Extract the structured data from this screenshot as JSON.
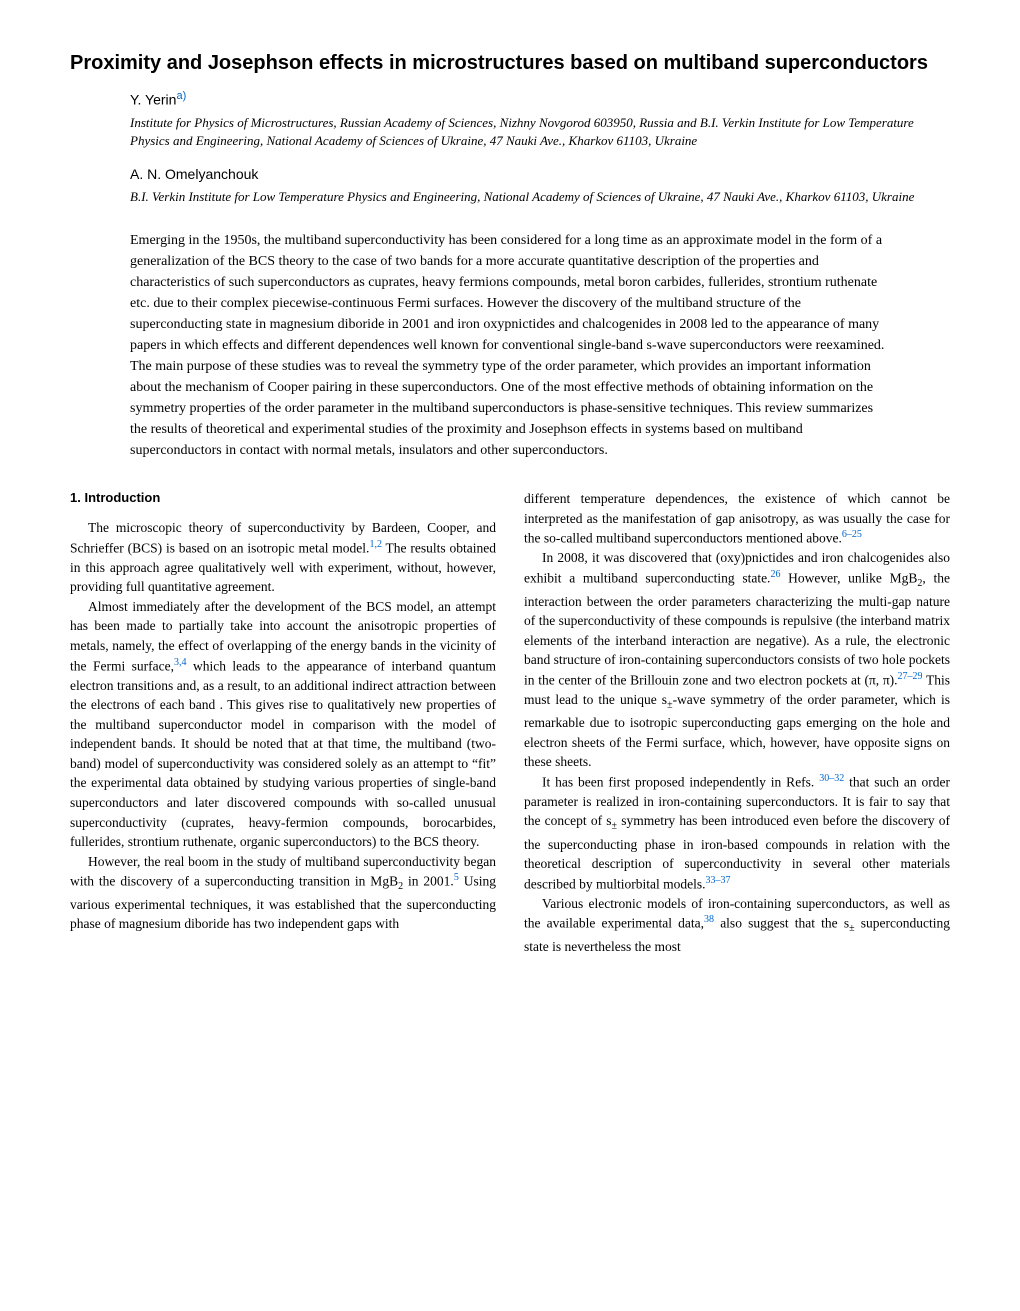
{
  "title": "Proximity and Josephson effects in microstructures based on multiband superconductors",
  "authors": [
    {
      "name": "Y. Yerin",
      "sup": "a)",
      "affiliation": "Institute for Physics of Microstructures, Russian Academy of Sciences, Nizhny Novgorod 603950, Russia and B.I. Verkin Institute for Low Temperature Physics and Engineering, National Academy of Sciences of Ukraine, 47 Nauki Ave., Kharkov 61103, Ukraine"
    },
    {
      "name": "A. N. Omelyanchouk",
      "sup": "",
      "affiliation": "B.I. Verkin Institute for Low Temperature Physics and Engineering, National Academy of Sciences of Ukraine, 47 Nauki Ave., Kharkov 61103, Ukraine"
    }
  ],
  "abstract": "Emerging in the 1950s, the multiband superconductivity has been considered for a long time as an approximate model in the form of a generalization of the BCS theory to the case of two bands for a more accurate quantitative description of the properties and characteristics of such superconductors as cuprates, heavy fermions compounds, metal boron carbides, fullerides, strontium ruthenate etc. due to their complex piecewise-continuous Fermi surfaces. However the discovery of the multiband structure of the superconducting state in magnesium diboride in 2001 and iron oxypnictides and chalcogenides in 2008 led to the appearance of many papers in which effects and different dependences well known for conventional single-band s-wave superconductors were reexamined. The main purpose of these studies was to reveal the symmetry type of the order parameter, which provides an important information about the mechanism of Cooper pairing in these superconductors. One of the most effective methods of obtaining information on the symmetry properties of the order parameter in the multiband superconductors is phase-sensitive techniques. This review summarizes the results of theoretical and experimental studies of the proximity and Josephson effects in systems based on multiband superconductors in contact with normal metals, insulators and other superconductors.",
  "section1_heading": "1. Introduction",
  "left": {
    "p1a": "The microscopic theory of superconductivity by Bardeen, Cooper, and Schrieffer (BCS) is based on an isotropic metal model.",
    "p1_cite1": "1,2",
    "p1b": " The results obtained in this approach agree qualitatively well with experiment, without, however, providing full quantitative agreement.",
    "p2a": "Almost immediately after the development of the BCS model, an attempt has been made to partially take into account the anisotropic properties of metals, namely, the effect of overlapping of the energy bands in the vicinity of the Fermi surface,",
    "p2_cite1": "3,4",
    "p2b": " which leads to the appearance of interband quantum electron transitions and, as a result, to an additional indirect attraction between the electrons of each band . This gives rise to qualitatively new properties of the multiband superconductor model in comparison with the model of independent bands. It should be noted that at that time, the multiband (two-band) model of superconductivity was considered solely as an attempt to “fit” the experimental data obtained by studying various properties of single-band superconductors and later discovered compounds with so-called unusual superconductivity (cuprates, heavy-fermion compounds, borocarbides, fullerides, strontium ruthenate, organic superconductors) to the BCS theory.",
    "p3a": "However, the real boom in the study of multiband superconductivity began with the discovery of a superconducting transition in MgB",
    "p3_sub": "2",
    "p3b": " in 2001.",
    "p3_cite1": "5",
    "p3c": " Using various experimental techniques, it was established that the superconducting phase of magnesium diboride has two independent gaps with"
  },
  "right": {
    "p1a": "different temperature dependences, the existence of which cannot be interpreted as the manifestation of gap anisotropy, as was usually the case for the so-called multiband superconductors mentioned above.",
    "p1_cite1": "6–25",
    "p2a": "In 2008, it was discovered that (oxy)pnictides and iron chalcogenides also exhibit a multiband superconducting state.",
    "p2_cite1": "26",
    "p2b": " However, unlike MgB",
    "p2_sub": "2",
    "p2c": ", the interaction between the order parameters characterizing the multi-gap nature of the superconductivity of these compounds is repulsive (the interband matrix elements of the interband interaction are negative). As a rule, the electronic band structure of iron-containing superconductors consists of two hole pockets in the center of the Brillouin zone and two electron pockets at (π, π).",
    "p2_cite2": "27–29",
    "p2d": " This must lead to the unique s",
    "p2_pm": "±",
    "p2e": "-wave symmetry of the order parameter, which is remarkable due to isotropic superconducting gaps emerging on the hole and electron sheets of the Fermi surface, which, however, have opposite signs on these sheets.",
    "p3a": "It has been first proposed independently in Refs. ",
    "p3_cite1": "30–32",
    "p3b": " that such an order parameter is realized in iron-containing superconductors. It is fair to say that the concept of s",
    "p3_pm": "±",
    "p3c": " symmetry has been introduced even before the discovery of the superconducting phase in iron-based compounds in relation with the theoretical description of superconductivity in several other materials described by multiorbital models.",
    "p3_cite2": "33–37",
    "p4a": "Various electronic models of iron-containing superconductors, as well as the available experimental data,",
    "p4_cite1": "38",
    "p4b": " also suggest that the s",
    "p4_pm": "±",
    "p4c": " superconducting state is nevertheless the most"
  },
  "colors": {
    "link": "#0066cc",
    "text": "#000000",
    "background": "#ffffff"
  }
}
